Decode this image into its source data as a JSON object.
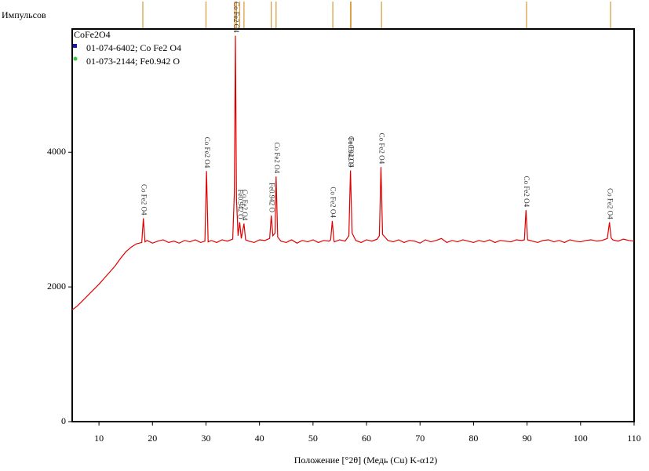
{
  "chart_data": {
    "type": "line",
    "y_label": "Импульсов",
    "x_label": "Положение [°2θ] (Медь (Cu) K-α12)",
    "xlim": [
      5,
      110
    ],
    "ylim": [
      0,
      5830
    ],
    "xticks": [
      10,
      20,
      30,
      40,
      50,
      60,
      70,
      80,
      90,
      100,
      110
    ],
    "yticks": [
      0,
      2000,
      4000
    ],
    "x": [
      5,
      6,
      7,
      8,
      9,
      10,
      11,
      12,
      13,
      14,
      15,
      16,
      17,
      18,
      18.3,
      18.6,
      19,
      20,
      21,
      22,
      23,
      24,
      25,
      26,
      27,
      28,
      29,
      29.8,
      30.1,
      30.4,
      31,
      32,
      33,
      34,
      35,
      35.3,
      35.5,
      35.7,
      36,
      36.3,
      36.6,
      37.1,
      37.4,
      38,
      39,
      40,
      41,
      41.9,
      42.2,
      42.5,
      42.9,
      43.1,
      43.4,
      44,
      45,
      46,
      47,
      48,
      49,
      50,
      51,
      52,
      53,
      53.3,
      53.6,
      53.9,
      54,
      55,
      56,
      56.7,
      57,
      57.3,
      58,
      59,
      60,
      61,
      62,
      62.4,
      62.7,
      63,
      64,
      65,
      66,
      67,
      68,
      69,
      70,
      71,
      72,
      73,
      74,
      75,
      76,
      77,
      78,
      79,
      80,
      81,
      82,
      83,
      84,
      85,
      86,
      87,
      88,
      89,
      89.5,
      89.8,
      90.1,
      91,
      92,
      93,
      94,
      95,
      96,
      97,
      98,
      99,
      100,
      101,
      102,
      103,
      104,
      105,
      105.4,
      105.7,
      106,
      107,
      108,
      109,
      110
    ],
    "series": [
      {
        "color": "#e00000",
        "values": [
          1660,
          1720,
          1800,
          1880,
          1960,
          2040,
          2130,
          2220,
          2310,
          2420,
          2520,
          2590,
          2640,
          2660,
          3020,
          2670,
          2690,
          2650,
          2680,
          2700,
          2660,
          2680,
          2650,
          2690,
          2670,
          2700,
          2660,
          2680,
          3720,
          2670,
          2690,
          2660,
          2700,
          2680,
          2710,
          3400,
          5730,
          3300,
          2760,
          2960,
          2720,
          2940,
          2700,
          2680,
          2660,
          2700,
          2690,
          2720,
          3060,
          2760,
          2800,
          3640,
          2740,
          2680,
          2660,
          2700,
          2650,
          2690,
          2670,
          2700,
          2660,
          2690,
          2680,
          2700,
          2980,
          2690,
          2670,
          2700,
          2680,
          2760,
          3730,
          2800,
          2690,
          2660,
          2700,
          2680,
          2710,
          2760,
          3780,
          2780,
          2690,
          2670,
          2700,
          2660,
          2690,
          2680,
          2650,
          2700,
          2670,
          2690,
          2720,
          2660,
          2690,
          2670,
          2700,
          2680,
          2660,
          2690,
          2670,
          2700,
          2660,
          2690,
          2680,
          2670,
          2700,
          2690,
          2700,
          3140,
          2700,
          2680,
          2660,
          2690,
          2700,
          2670,
          2690,
          2660,
          2700,
          2680,
          2670,
          2690,
          2700,
          2680,
          2690,
          2720,
          2960,
          2730,
          2700,
          2680,
          2710,
          2690,
          2680
        ]
      }
    ],
    "reference_color": "#d9a044",
    "reference_positions": [
      18.2,
      30.0,
      35.4,
      35.7,
      36.3,
      37.1,
      42.2,
      43.1,
      53.7,
      57.0,
      57.1,
      62.8,
      89.9,
      105.6
    ],
    "annotations": [
      {
        "text": "Co Fe2 O4",
        "x": 18.3,
        "y": 3020
      },
      {
        "text": "Co Fe2 O4",
        "x": 30.1,
        "y": 3720
      },
      {
        "text": "Co Fe2 O4",
        "x": 35.5,
        "y": 5730
      },
      {
        "text": "Fe0.942 O",
        "x": 36.3,
        "y": 2960
      },
      {
        "text": "Co Fe2 O4",
        "x": 37.1,
        "y": 2940
      },
      {
        "text": "Fe0.942 O",
        "x": 42.2,
        "y": 3060
      },
      {
        "text": "Co Fe2 O4",
        "x": 43.1,
        "y": 3640
      },
      {
        "text": "Co Fe2 O4",
        "x": 53.6,
        "y": 2980
      },
      {
        "text": "Fe0.942 O",
        "x": 56.9,
        "y": 3730
      },
      {
        "text": "Co Fe2 O4",
        "x": 57.0,
        "y": 3730
      },
      {
        "text": "Co Fe2 O4",
        "x": 62.7,
        "y": 3780
      },
      {
        "text": "Co Fe2 O4",
        "x": 89.8,
        "y": 3140
      },
      {
        "text": "Co Fe2 O4",
        "x": 105.4,
        "y": 2960
      }
    ],
    "legend": {
      "title": "CoFe2O4",
      "entries": [
        {
          "name": "01-074-6402; Co Fe2 O4",
          "color": "#1a1aa8",
          "marker": "square"
        },
        {
          "name": "01-073-2144; Fe0.942 O",
          "color": "#33cc33",
          "marker": "circle"
        }
      ]
    }
  }
}
